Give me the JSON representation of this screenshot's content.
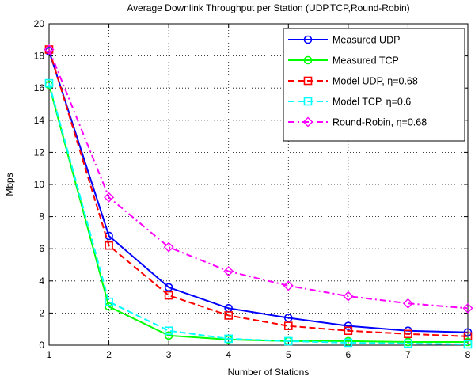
{
  "chart_data": {
    "type": "line",
    "title": "Average Downlink Throughput per Station (UDP,TCP,Round-Robin)",
    "xlabel": "Number of Stations",
    "ylabel": "Mbps",
    "xlim": [
      1,
      8
    ],
    "ylim": [
      0,
      20
    ],
    "xticks": [
      "1",
      "2",
      "3",
      "4",
      "5",
      "6",
      "7",
      "8"
    ],
    "yticks": [
      "0",
      "2",
      "4",
      "6",
      "8",
      "10",
      "12",
      "14",
      "16",
      "18",
      "20"
    ],
    "grid": true,
    "legend_position": "top-right",
    "x": [
      1,
      2,
      3,
      4,
      5,
      6,
      7,
      8
    ],
    "series": [
      {
        "name": "Measured UDP",
        "values": [
          18.3,
          6.8,
          3.6,
          2.3,
          1.7,
          1.2,
          0.9,
          0.8
        ],
        "color": "#0000ff",
        "dash": "solid",
        "marker": "circle"
      },
      {
        "name": "Measured TCP",
        "values": [
          16.2,
          2.4,
          0.6,
          0.35,
          0.25,
          0.25,
          0.2,
          0.2
        ],
        "color": "#00ff00",
        "dash": "solid",
        "marker": "circle"
      },
      {
        "name": "Model UDP, η=0.68",
        "values": [
          18.4,
          6.2,
          3.1,
          1.85,
          1.2,
          0.9,
          0.7,
          0.55
        ],
        "color": "#ff0000",
        "dash": "dashed",
        "marker": "square"
      },
      {
        "name": "Model TCP, η=0.6",
        "values": [
          16.3,
          2.7,
          0.9,
          0.4,
          0.25,
          0.15,
          0.1,
          0.05
        ],
        "color": "#00ffff",
        "dash": "dashed",
        "marker": "square"
      },
      {
        "name": "Round-Robin, η=0.68",
        "values": [
          18.4,
          9.2,
          6.1,
          4.6,
          3.7,
          3.05,
          2.6,
          2.3
        ],
        "color": "#ff00ff",
        "dash": "dashdot",
        "marker": "diamond"
      }
    ]
  }
}
